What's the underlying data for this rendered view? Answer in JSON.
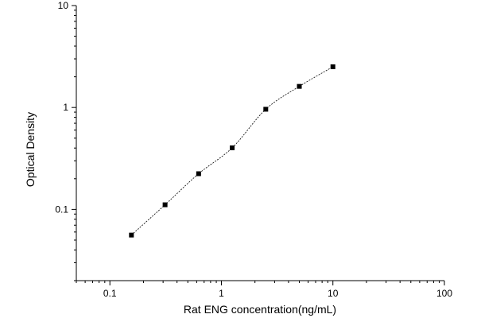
{
  "chart_data": {
    "type": "scatter",
    "title": "",
    "xlabel": "Rat ENG concentration(ng/mL)",
    "ylabel": "Optical Density",
    "x_scale": "log",
    "y_scale": "log",
    "xlim": [
      0.05,
      100
    ],
    "ylim": [
      0.02,
      10
    ],
    "x_ticks": [
      0.1,
      1,
      10,
      100
    ],
    "x_tick_labels": [
      "0.1",
      "1",
      "10",
      "100"
    ],
    "y_ticks": [
      0.1,
      1,
      10
    ],
    "y_tick_labels": [
      "0.1",
      "1",
      "10"
    ],
    "grid": false,
    "series": [
      {
        "marker": "square",
        "fit_line": "dashed",
        "color": "#000000",
        "points": [
          {
            "x": 0.156,
            "y": 0.056
          },
          {
            "x": 0.3125,
            "y": 0.111
          },
          {
            "x": 0.625,
            "y": 0.224
          },
          {
            "x": 1.25,
            "y": 0.402
          },
          {
            "x": 2.5,
            "y": 0.961
          },
          {
            "x": 5,
            "y": 1.611
          },
          {
            "x": 10,
            "y": 2.509
          }
        ]
      }
    ]
  }
}
